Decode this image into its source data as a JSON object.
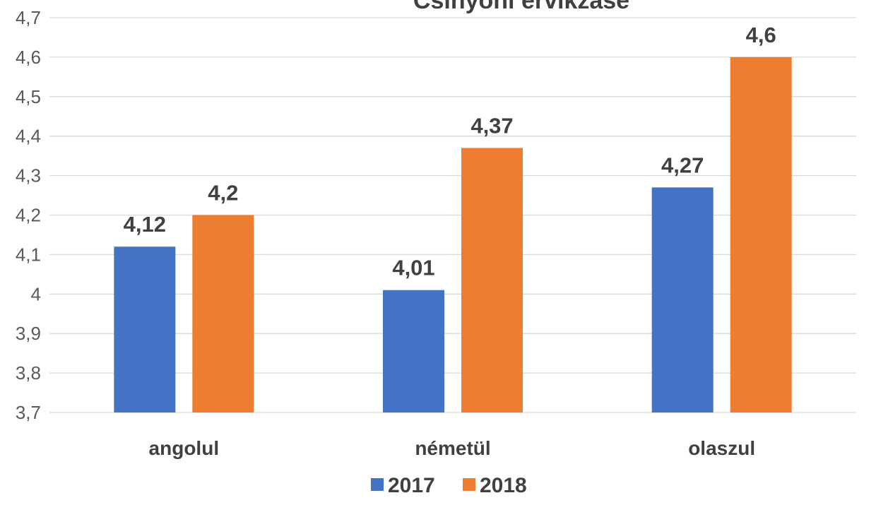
{
  "chart_data": {
    "type": "bar",
    "title": "Csinyóhl érvikzasé",
    "categories": [
      "angolul",
      "németül",
      "olaszul"
    ],
    "series": [
      {
        "name": "2017",
        "values": [
          4.12,
          4.01,
          4.27
        ],
        "color": "#4472C4"
      },
      {
        "name": "2018",
        "values": [
          4.2,
          4.37,
          4.6
        ],
        "color": "#ED7D31"
      }
    ],
    "data_labels": [
      [
        "4,12",
        "4,01",
        "4,27"
      ],
      [
        "4,2",
        "4,37",
        "4,6"
      ]
    ],
    "ylim": [
      3.7,
      4.7
    ],
    "y_ticks": [
      "3,7",
      "3,8",
      "3,9",
      "4",
      "4,1",
      "4,2",
      "4,3",
      "4,4",
      "4,5",
      "4,6",
      "4,7"
    ],
    "grid": true,
    "legend_position": "bottom"
  }
}
